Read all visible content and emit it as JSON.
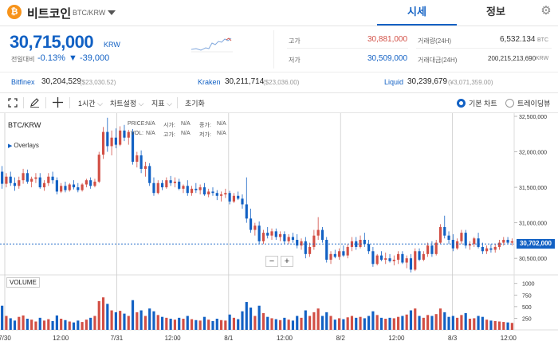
{
  "header": {
    "coin_icon": "bitcoin-icon",
    "coin_symbol": "₿",
    "coin_name": "비트코인",
    "pair": "BTC/KRW",
    "tabs": [
      {
        "label": "시세",
        "active": true
      },
      {
        "label": "정보",
        "active": false
      }
    ],
    "settings_icon": "gear-icon",
    "settings_glyph": "⚙"
  },
  "ticker": {
    "price": "30,715,000",
    "unit": "KRW",
    "change_label": "전일대비",
    "change_pct": "-0.13%",
    "change_abs": "▼ -39,000",
    "high_label": "고가",
    "high_value": "30,881,000",
    "low_label": "저가",
    "low_value": "30,509,000",
    "volume_label": "거래량(24H)",
    "volume_value": "6,532.134",
    "volume_unit": "BTC",
    "amount_label": "거래대금(24H)",
    "amount_value": "200,215,213,690",
    "amount_unit": "KRW"
  },
  "exchanges": [
    {
      "name": "Bitfinex",
      "price": "30,204,529",
      "sub": "($23,030.52)"
    },
    {
      "name": "Kraken",
      "price": "30,211,714",
      "sub": "($23,036.00)"
    },
    {
      "name": "Liquid",
      "price": "30,239,679",
      "sub": "(¥3,071,359.00)"
    }
  ],
  "toolbar": {
    "interval": "1시간",
    "chart_settings": "차트설정",
    "indicators": "지표",
    "reset": "초기화",
    "view_basic": "기본 차트",
    "view_tv": "트레이딩뷰",
    "selected_view": "basic"
  },
  "chart_overlay": {
    "symbol": "BTC/KRW",
    "overlays": "Overlays",
    "price_label": "PRICE:",
    "price_val": "N/A",
    "vol_label": "VOL:",
    "vol_val": "N/A",
    "open_label": "시가:",
    "open_val": "N/A",
    "high_label": "고가:",
    "high_val": "N/A",
    "close_label": "종가:",
    "close_val": "N/A",
    "low_label": "저가:",
    "low_val": "N/A",
    "volume_title": "VOLUME",
    "current_price_tag": "30,702,000"
  },
  "colors": {
    "up": "#d24f45",
    "down": "#1261c4",
    "accent": "#1261c4"
  },
  "chart_data": {
    "type": "candlestick",
    "x_ticks": [
      "7/30",
      "12:00",
      "7/31",
      "12:00",
      "8/1",
      "12:00",
      "8/2",
      "12:00",
      "8/3",
      "12:00"
    ],
    "y_ticks": [
      "32,500,000",
      "32,000,000",
      "31,500,000",
      "31,000,000",
      "30,500,000"
    ],
    "y_ticks_num": [
      32500000,
      32000000,
      31500000,
      31000000,
      30500000
    ],
    "ylim": [
      30300000,
      32500000
    ],
    "volume_ticks": [
      "1000",
      "750",
      "500",
      "250"
    ],
    "volume_ticks_num": [
      1000,
      750,
      500,
      250
    ],
    "volume_ylim": [
      0,
      1150
    ],
    "current_price": 30702000,
    "candles": [
      [
        31720000,
        31800000,
        31480000,
        31550000,
        520
      ],
      [
        31550000,
        31700000,
        31500000,
        31650000,
        300
      ],
      [
        31650000,
        31720000,
        31520000,
        31560000,
        250
      ],
      [
        31560000,
        31640000,
        31450000,
        31520000,
        200
      ],
      [
        31520000,
        31650000,
        31480000,
        31600000,
        280
      ],
      [
        31600000,
        31760000,
        31550000,
        31700000,
        310
      ],
      [
        31700000,
        31750000,
        31550000,
        31580000,
        240
      ],
      [
        31580000,
        31650000,
        31500000,
        31620000,
        220
      ],
      [
        31620000,
        31700000,
        31560000,
        31640000,
        180
      ],
      [
        31640000,
        31700000,
        31480000,
        31500000,
        260
      ],
      [
        31500000,
        31600000,
        31450000,
        31560000,
        200
      ],
      [
        31560000,
        31700000,
        31520000,
        31650000,
        230
      ],
      [
        31650000,
        31720000,
        31550000,
        31600000,
        190
      ],
      [
        31600000,
        31640000,
        31400000,
        31440000,
        310
      ],
      [
        31440000,
        31560000,
        31420000,
        31520000,
        240
      ],
      [
        31520000,
        31580000,
        31430000,
        31460000,
        210
      ],
      [
        31460000,
        31560000,
        31440000,
        31540000,
        180
      ],
      [
        31540000,
        31600000,
        31470000,
        31500000,
        160
      ],
      [
        31500000,
        31560000,
        31430000,
        31460000,
        200
      ],
      [
        31460000,
        31560000,
        31440000,
        31540000,
        170
      ],
      [
        31540000,
        31620000,
        31500000,
        31600000,
        220
      ],
      [
        31600000,
        31640000,
        31480000,
        31520000,
        260
      ],
      [
        31520000,
        31620000,
        31500000,
        31580000,
        300
      ],
      [
        31580000,
        32000000,
        31560000,
        31960000,
        620
      ],
      [
        31960000,
        32350000,
        31900000,
        32280000,
        700
      ],
      [
        32280000,
        32480000,
        32000000,
        32080000,
        560
      ],
      [
        32080000,
        32300000,
        31950000,
        32200000,
        420
      ],
      [
        32200000,
        32330000,
        32050000,
        32100000,
        380
      ],
      [
        32100000,
        32360000,
        32080000,
        32300000,
        410
      ],
      [
        32300000,
        32380000,
        32150000,
        32200000,
        350
      ],
      [
        32200000,
        32310000,
        32100000,
        32280000,
        300
      ],
      [
        32280000,
        32320000,
        31820000,
        31860000,
        640
      ],
      [
        31860000,
        32000000,
        31780000,
        31950000,
        380
      ],
      [
        31950000,
        32020000,
        31700000,
        31760000,
        420
      ],
      [
        31760000,
        31860000,
        31650000,
        31800000,
        300
      ],
      [
        31800000,
        31840000,
        31520000,
        31560000,
        460
      ],
      [
        31560000,
        31640000,
        31380000,
        31420000,
        400
      ],
      [
        31420000,
        31600000,
        31400000,
        31560000,
        320
      ],
      [
        31560000,
        31600000,
        31460000,
        31500000,
        280
      ],
      [
        31500000,
        31640000,
        31480000,
        31600000,
        260
      ],
      [
        31600000,
        31660000,
        31520000,
        31560000,
        240
      ],
      [
        31560000,
        31640000,
        31500000,
        31580000,
        220
      ],
      [
        31580000,
        31620000,
        31460000,
        31480000,
        260
      ],
      [
        31480000,
        31540000,
        31420000,
        31520000,
        240
      ],
      [
        31520000,
        31600000,
        31380000,
        31420000,
        300
      ],
      [
        31420000,
        31520000,
        31380000,
        31480000,
        230
      ],
      [
        31480000,
        31560000,
        31420000,
        31460000,
        210
      ],
      [
        31460000,
        31540000,
        31400000,
        31500000,
        200
      ],
      [
        31500000,
        31560000,
        31380000,
        31400000,
        280
      ],
      [
        31400000,
        31480000,
        31360000,
        31440000,
        220
      ],
      [
        31440000,
        31500000,
        31380000,
        31420000,
        190
      ],
      [
        31420000,
        31460000,
        31320000,
        31380000,
        240
      ],
      [
        31380000,
        31440000,
        31300000,
        31400000,
        210
      ],
      [
        31400000,
        31480000,
        31350000,
        31420000,
        200
      ],
      [
        31420000,
        31450000,
        31260000,
        31300000,
        330
      ],
      [
        31300000,
        31420000,
        31280000,
        31380000,
        260
      ],
      [
        31380000,
        31440000,
        31320000,
        31340000,
        230
      ],
      [
        31340000,
        31400000,
        31200000,
        31260000,
        400
      ],
      [
        31260000,
        31640000,
        31000000,
        31060000,
        600
      ],
      [
        31060000,
        31200000,
        30860000,
        30900000,
        480
      ],
      [
        30900000,
        31000000,
        30820000,
        30960000,
        300
      ],
      [
        30960000,
        31020000,
        30700000,
        30740000,
        520
      ],
      [
        30740000,
        30900000,
        30700000,
        30860000,
        360
      ],
      [
        30860000,
        30940000,
        30780000,
        30820000,
        280
      ],
      [
        30820000,
        30920000,
        30760000,
        30880000,
        250
      ],
      [
        30880000,
        30920000,
        30760000,
        30800000,
        230
      ],
      [
        30800000,
        30880000,
        30740000,
        30840000,
        210
      ],
      [
        30840000,
        30880000,
        30700000,
        30740000,
        260
      ],
      [
        30740000,
        30840000,
        30700000,
        30800000,
        220
      ],
      [
        30800000,
        30860000,
        30720000,
        30760000,
        200
      ],
      [
        30760000,
        30840000,
        30640000,
        30680000,
        300
      ],
      [
        30680000,
        30780000,
        30620000,
        30740000,
        260
      ],
      [
        30740000,
        30800000,
        30500000,
        30560000,
        420
      ],
      [
        30560000,
        30720000,
        30520000,
        30660000,
        300
      ],
      [
        30660000,
        30900000,
        30620000,
        30820000,
        380
      ],
      [
        30820000,
        31080000,
        30760000,
        30900000,
        460
      ],
      [
        30900000,
        30940000,
        30720000,
        30760000,
        300
      ],
      [
        30760000,
        30800000,
        30440000,
        30480000,
        380
      ],
      [
        30480000,
        30600000,
        30420000,
        30560000,
        300
      ],
      [
        30560000,
        30620000,
        30500000,
        30520000,
        220
      ],
      [
        30520000,
        30640000,
        30480000,
        30600000,
        250
      ],
      [
        30600000,
        30680000,
        30520000,
        30540000,
        230
      ],
      [
        30540000,
        30700000,
        30500000,
        30660000,
        270
      ],
      [
        30660000,
        30800000,
        30600000,
        30740000,
        300
      ],
      [
        30740000,
        30800000,
        30620000,
        30660000,
        260
      ],
      [
        30660000,
        30820000,
        30640000,
        30760000,
        280
      ],
      [
        30760000,
        30860000,
        30660000,
        30700000,
        250
      ],
      [
        30700000,
        30760000,
        30560000,
        30600000,
        300
      ],
      [
        30600000,
        30660000,
        30380000,
        30420000,
        400
      ],
      [
        30420000,
        30560000,
        30400000,
        30540000,
        320
      ],
      [
        30540000,
        30600000,
        30460000,
        30480000,
        260
      ],
      [
        30480000,
        30580000,
        30420000,
        30500000,
        240
      ],
      [
        30500000,
        30560000,
        30440000,
        30460000,
        260
      ],
      [
        30460000,
        30540000,
        30400000,
        30480000,
        250
      ],
      [
        30480000,
        30600000,
        30420000,
        30560000,
        280
      ],
      [
        30560000,
        30600000,
        30420000,
        30440000,
        300
      ],
      [
        30440000,
        30540000,
        30360000,
        30500000,
        330
      ],
      [
        30500000,
        30560000,
        30300000,
        30340000,
        420
      ],
      [
        30340000,
        30640000,
        30320000,
        30600000,
        460
      ],
      [
        30600000,
        30640000,
        30460000,
        30480000,
        300
      ],
      [
        30480000,
        30600000,
        30460000,
        30560000,
        260
      ],
      [
        30560000,
        30720000,
        30520000,
        30680000,
        320
      ],
      [
        30680000,
        30740000,
        30520000,
        30560000,
        300
      ],
      [
        30560000,
        30760000,
        30540000,
        30720000,
        340
      ],
      [
        30720000,
        30980000,
        30700000,
        30940000,
        460
      ],
      [
        30940000,
        31100000,
        30780000,
        30820000,
        380
      ],
      [
        30820000,
        30880000,
        30700000,
        30760000,
        280
      ],
      [
        30760000,
        30840000,
        30600000,
        30640000,
        300
      ],
      [
        30640000,
        30780000,
        30620000,
        30740000,
        260
      ],
      [
        30740000,
        30900000,
        30700000,
        30860000,
        320
      ],
      [
        30860000,
        30900000,
        30640000,
        30680000,
        360
      ],
      [
        30680000,
        30740000,
        30620000,
        30700000,
        240
      ],
      [
        30700000,
        30800000,
        30660000,
        30780000,
        250
      ],
      [
        30780000,
        30860000,
        30640000,
        30660000,
        300
      ],
      [
        30660000,
        30720000,
        30560000,
        30600000,
        280
      ],
      [
        30600000,
        30680000,
        30560000,
        30640000,
        220
      ],
      [
        30640000,
        30700000,
        30580000,
        30620000,
        200
      ],
      [
        30620000,
        30700000,
        30580000,
        30660000,
        190
      ],
      [
        30660000,
        30760000,
        30620000,
        30720000,
        180
      ],
      [
        30720000,
        30800000,
        30680000,
        30760000,
        170
      ],
      [
        30760000,
        30800000,
        30700000,
        30720000,
        160
      ],
      [
        30720000,
        30780000,
        30680000,
        30740000,
        150
      ]
    ]
  }
}
